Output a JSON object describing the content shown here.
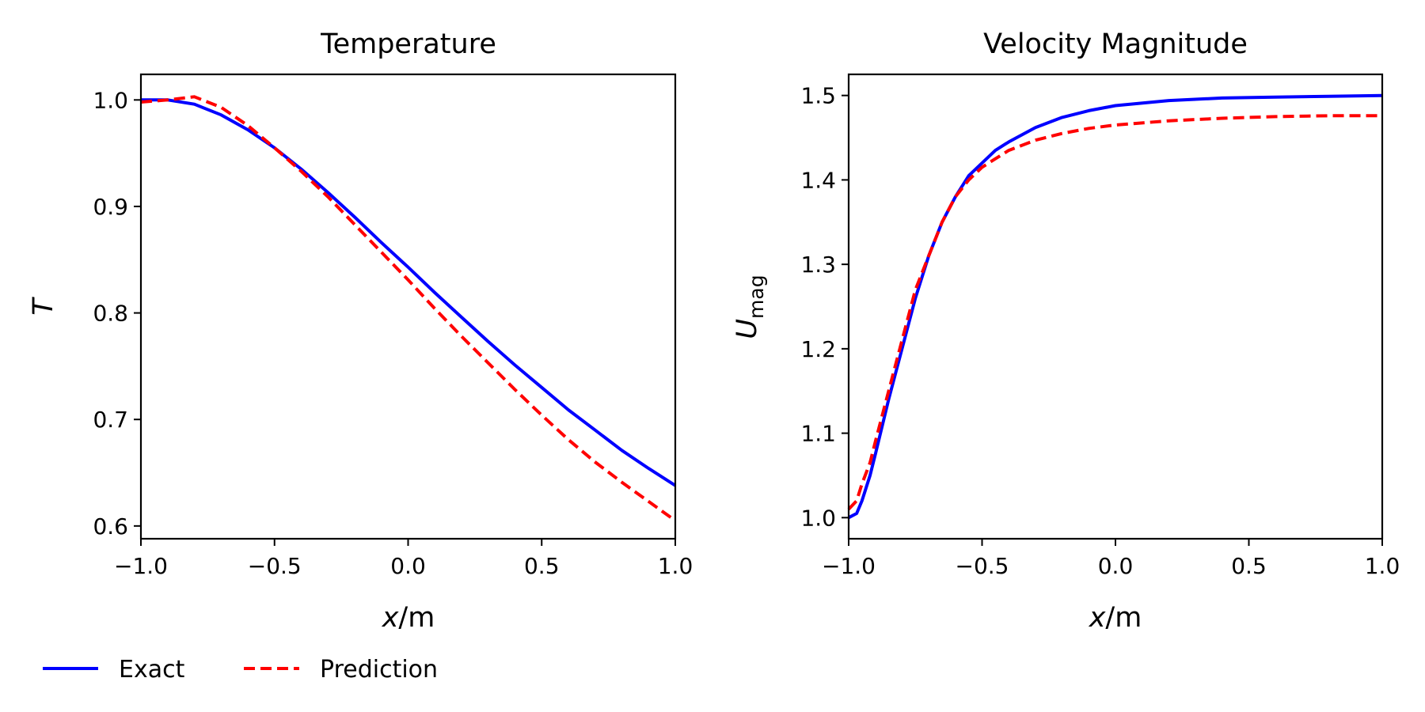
{
  "chart_data": [
    {
      "type": "line",
      "title": "Temperature",
      "xlabel_var": "x",
      "xlabel_unit": "/m",
      "ylabel": "T",
      "xlim": [
        -1.0,
        1.0
      ],
      "ylim": [
        0.588,
        1.024
      ],
      "xticks": [
        "−1.0",
        "−0.5",
        "0.0",
        "0.5",
        "1.0"
      ],
      "xtick_values": [
        -1.0,
        -0.5,
        0.0,
        0.5,
        1.0
      ],
      "yticks": [
        "0.6",
        "0.7",
        "0.8",
        "0.9",
        "1.0"
      ],
      "ytick_values": [
        0.6,
        0.7,
        0.8,
        0.9,
        1.0
      ],
      "series": [
        {
          "name": "Exact",
          "color": "#0000ff",
          "style": "solid",
          "x": [
            -1.0,
            -0.9,
            -0.8,
            -0.7,
            -0.6,
            -0.5,
            -0.4,
            -0.3,
            -0.2,
            -0.1,
            0.0,
            0.1,
            0.2,
            0.3,
            0.4,
            0.5,
            0.6,
            0.7,
            0.8,
            0.9,
            1.0
          ],
          "y": [
            1.0,
            1.0,
            0.996,
            0.986,
            0.972,
            0.955,
            0.935,
            0.913,
            0.89,
            0.866,
            0.843,
            0.819,
            0.796,
            0.773,
            0.751,
            0.73,
            0.709,
            0.69,
            0.671,
            0.654,
            0.638
          ]
        },
        {
          "name": "Prediction",
          "color": "#ff0000",
          "style": "dashed",
          "x": [
            -1.0,
            -0.9,
            -0.8,
            -0.7,
            -0.6,
            -0.5,
            -0.4,
            -0.3,
            -0.2,
            -0.1,
            0.0,
            0.1,
            0.2,
            0.3,
            0.4,
            0.5,
            0.6,
            0.7,
            0.8,
            0.9,
            1.0
          ],
          "y": [
            0.998,
            1.0,
            1.003,
            0.993,
            0.976,
            0.955,
            0.933,
            0.909,
            0.883,
            0.857,
            0.831,
            0.804,
            0.778,
            0.753,
            0.728,
            0.704,
            0.681,
            0.66,
            0.641,
            0.623,
            0.605
          ]
        }
      ]
    },
    {
      "type": "line",
      "title": "Velocity Magnitude",
      "xlabel_var": "x",
      "xlabel_unit": "/m",
      "ylabel": "U",
      "ylabel_sub": "mag",
      "xlim": [
        -1.0,
        1.0
      ],
      "ylim": [
        0.975,
        1.525
      ],
      "xticks": [
        "−1.0",
        "−0.5",
        "0.0",
        "0.5",
        "1.0"
      ],
      "xtick_values": [
        -1.0,
        -0.5,
        0.0,
        0.5,
        1.0
      ],
      "yticks": [
        "1.0",
        "1.1",
        "1.2",
        "1.3",
        "1.4",
        "1.5"
      ],
      "ytick_values": [
        1.0,
        1.1,
        1.2,
        1.3,
        1.4,
        1.5
      ],
      "series": [
        {
          "name": "Exact",
          "color": "#0000ff",
          "style": "solid",
          "x": [
            -1.0,
            -0.97,
            -0.95,
            -0.92,
            -0.9,
            -0.85,
            -0.8,
            -0.75,
            -0.7,
            -0.65,
            -0.6,
            -0.55,
            -0.5,
            -0.45,
            -0.4,
            -0.3,
            -0.2,
            -0.1,
            0.0,
            0.2,
            0.4,
            0.6,
            0.8,
            1.0
          ],
          "y": [
            1.0,
            1.005,
            1.02,
            1.05,
            1.075,
            1.14,
            1.2,
            1.26,
            1.31,
            1.35,
            1.38,
            1.405,
            1.42,
            1.435,
            1.445,
            1.462,
            1.474,
            1.482,
            1.488,
            1.494,
            1.497,
            1.498,
            1.499,
            1.5
          ]
        },
        {
          "name": "Prediction",
          "color": "#ff0000",
          "style": "dashed",
          "x": [
            -1.0,
            -0.97,
            -0.95,
            -0.92,
            -0.9,
            -0.85,
            -0.8,
            -0.75,
            -0.7,
            -0.65,
            -0.6,
            -0.55,
            -0.5,
            -0.45,
            -0.4,
            -0.3,
            -0.2,
            -0.1,
            0.0,
            0.2,
            0.4,
            0.6,
            0.8,
            1.0
          ],
          "y": [
            1.01,
            1.02,
            1.04,
            1.065,
            1.09,
            1.15,
            1.21,
            1.27,
            1.31,
            1.35,
            1.38,
            1.4,
            1.415,
            1.425,
            1.435,
            1.447,
            1.455,
            1.461,
            1.465,
            1.47,
            1.473,
            1.475,
            1.476,
            1.476
          ]
        }
      ]
    }
  ],
  "legend": {
    "placement": "bottom-left",
    "items": [
      {
        "label": "Exact",
        "color": "#0000ff",
        "style": "solid"
      },
      {
        "label": "Prediction",
        "color": "#ff0000",
        "style": "dashed"
      }
    ]
  }
}
